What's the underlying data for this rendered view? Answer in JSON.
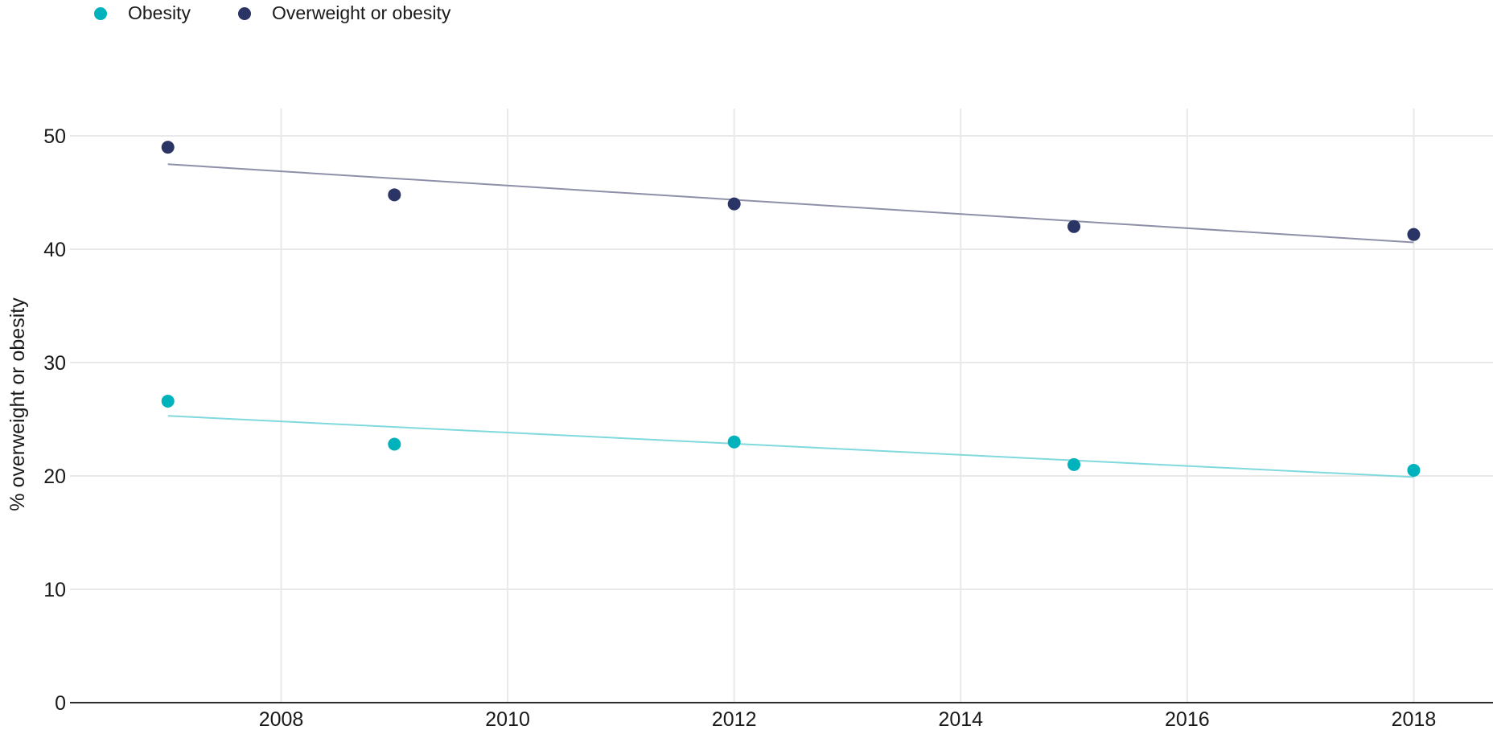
{
  "chart_data": {
    "type": "scatter",
    "title": "",
    "xlabel": "",
    "ylabel": "% overweight or obesity",
    "xlim": [
      2006.1,
      2018.7
    ],
    "ylim": [
      0,
      50
    ],
    "xticks": [
      2008,
      2010,
      2012,
      2014,
      2016,
      2018
    ],
    "yticks": [
      0,
      10,
      20,
      30,
      40,
      50
    ],
    "grid": true,
    "legend_position": "top-left",
    "series": [
      {
        "name": "Obesity",
        "color": "#00b2bb",
        "trend_color": "#7fd9dd",
        "x": [
          2007,
          2009,
          2012,
          2015,
          2018
        ],
        "y": [
          26.6,
          22.8,
          23.0,
          21.0,
          20.5
        ],
        "trendline": {
          "x": [
            2007,
            2018
          ],
          "y": [
            25.3,
            19.9
          ]
        }
      },
      {
        "name": "Overweight or obesity",
        "color": "#2a3565",
        "trend_color": "#8d90a8",
        "x": [
          2007,
          2009,
          2012,
          2015,
          2018
        ],
        "y": [
          49.0,
          44.8,
          44.0,
          42.0,
          41.3
        ],
        "trendline": {
          "x": [
            2007,
            2018
          ],
          "y": [
            47.5,
            40.6
          ]
        }
      }
    ]
  }
}
